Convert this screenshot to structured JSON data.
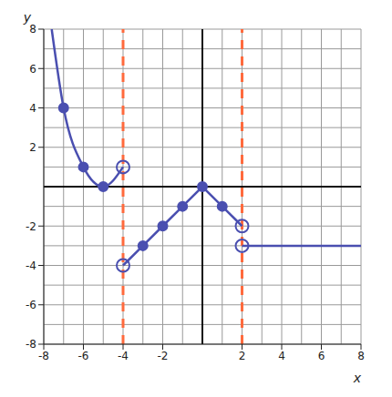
{
  "chart_data": {
    "type": "line",
    "x_label": "x",
    "y_label": "y",
    "xlim": [
      -8,
      8
    ],
    "ylim": [
      -8,
      8
    ],
    "xticks": [
      -8,
      -6,
      -4,
      -2,
      2,
      4,
      6,
      8
    ],
    "yticks": [
      -8,
      -6,
      -4,
      -2,
      2,
      4,
      6,
      8
    ],
    "grid": true,
    "series": [
      {
        "type": "line",
        "color": "#ff6a3d",
        "line_style": "dashed",
        "x": [
          -4,
          -4
        ],
        "values": [
          -8,
          8
        ]
      },
      {
        "type": "line",
        "color": "#ff6a3d",
        "line_style": "dashed",
        "x": [
          2,
          2
        ],
        "values": [
          -8,
          8
        ]
      },
      {
        "type": "spline",
        "color": "#4a4fb0",
        "line_style": "solid",
        "x": [
          -7.6,
          -7,
          -6,
          -5,
          -4
        ],
        "values": [
          8,
          4,
          1,
          0,
          1
        ]
      },
      {
        "type": "line",
        "color": "#4a4fb0",
        "line_style": "solid",
        "x": [
          -4,
          -3,
          -2,
          -1,
          0,
          1,
          2
        ],
        "values": [
          -4,
          -3,
          -2,
          -1,
          0,
          -1,
          -2
        ]
      },
      {
        "type": "line",
        "color": "#4a4fb0",
        "line_style": "solid",
        "x": [
          2,
          8
        ],
        "values": [
          -3,
          -3
        ]
      },
      {
        "type": "scatter",
        "color": "#4a4fb0",
        "marker": "circle",
        "x": [
          -7,
          -6,
          -5,
          -3,
          -2,
          -1,
          0,
          1
        ],
        "values": [
          4,
          1,
          0,
          -3,
          -2,
          -1,
          0,
          -1
        ]
      },
      {
        "type": "scatter",
        "color": "#4a4fb0",
        "marker": "open_circle",
        "x": [
          -4,
          -4,
          2,
          2
        ],
        "values": [
          1,
          -4,
          -2,
          -3
        ]
      }
    ]
  }
}
